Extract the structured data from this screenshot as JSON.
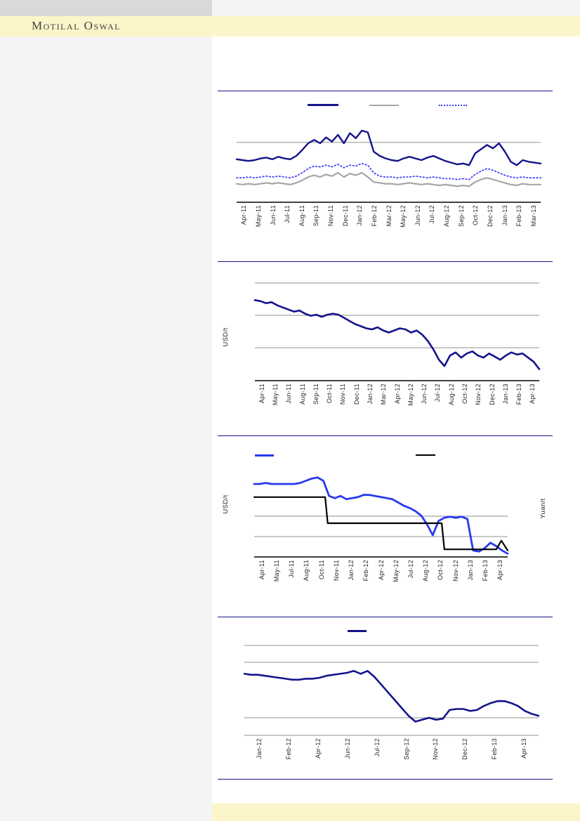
{
  "brand": {
    "name": "Motilal Oswal"
  },
  "page": {
    "background": "#ffffff",
    "left_panel_color": "#f4f4f4",
    "top_left_block_color": "#d9d9d9",
    "top_strip_color": "#f4f4f4",
    "band_color": "#fbf5c9",
    "divider_color": "#14148c",
    "gridline_color": "#909090",
    "axis_color": "#000000"
  },
  "chart_data": [
    {
      "id": "top-three-series-line-chart",
      "type": "line",
      "grid": true,
      "legend_position": "top",
      "baseline_axis": true,
      "gridlines_pct": [
        71
      ],
      "legend": [
        {
          "swatch": "navy-solid",
          "style": "solid",
          "color": "#14148c",
          "label": ""
        },
        {
          "swatch": "gray-solid",
          "style": "solid",
          "color": "#a6a6a6",
          "label": ""
        },
        {
          "swatch": "blue-dotted",
          "style": "dotted",
          "color": "#4040ff",
          "label": ""
        }
      ],
      "x_labels": [
        "Apr-11",
        "May-11",
        "Jun-11",
        "Jul-11",
        "Aug-11",
        "Sep-11",
        "Nov-11",
        "Dec-11",
        "Jan-12",
        "Feb-12",
        "Mar-12",
        "May-12",
        "Jun-12",
        "Jul-12",
        "Aug-12",
        "Sep-12",
        "Oct-12",
        "Dec-12",
        "Jan-13",
        "Feb-13",
        "Mar-13"
      ],
      "series": [
        {
          "name": "navy-solid",
          "color": "#14148c",
          "width": 2.4,
          "dash": "",
          "values": [
            51,
            50,
            49,
            50,
            52,
            53,
            51,
            54,
            52,
            51,
            55,
            62,
            70,
            74,
            70,
            77,
            72,
            80,
            70,
            82,
            76,
            85,
            83,
            60,
            55,
            52,
            50,
            49,
            52,
            54,
            52,
            50,
            53,
            55,
            52,
            49,
            47,
            45,
            46,
            44,
            58,
            63,
            68,
            64,
            70,
            60,
            48,
            44,
            50,
            48,
            47,
            46
          ]
        },
        {
          "name": "gray-solid",
          "color": "#a6a6a6",
          "width": 2.2,
          "dash": "",
          "values": [
            22,
            21,
            22,
            21,
            22,
            23,
            22,
            23,
            22,
            21,
            23,
            26,
            30,
            32,
            30,
            33,
            31,
            35,
            30,
            34,
            32,
            35,
            30,
            24,
            23,
            22,
            22,
            21,
            22,
            23,
            22,
            21,
            22,
            21,
            20,
            21,
            20,
            19,
            20,
            19,
            24,
            27,
            29,
            27,
            25,
            23,
            21,
            20,
            22,
            21,
            21,
            21
          ]
        },
        {
          "name": "blue-dotted",
          "color": "#4040ff",
          "width": 1.8,
          "dash": "1.5 3.2",
          "values": [
            29,
            29,
            30,
            29,
            30,
            31,
            30,
            31,
            30,
            29,
            31,
            35,
            40,
            43,
            42,
            44,
            42,
            45,
            41,
            44,
            43,
            46,
            44,
            35,
            31,
            30,
            30,
            29,
            30,
            30,
            31,
            30,
            29,
            30,
            29,
            28,
            28,
            27,
            28,
            27,
            33,
            37,
            40,
            38,
            35,
            32,
            30,
            29,
            30,
            29,
            29,
            29
          ]
        }
      ]
    },
    {
      "id": "usd-price-line-chart",
      "type": "line",
      "grid": true,
      "unit_left": "USD/t",
      "baseline_axis": true,
      "gridlines_pct": [
        93.3,
        62.4,
        31.5
      ],
      "x_labels": [
        "Apr-11",
        "May-11",
        "Jun-11",
        "Aug-11",
        "Sep-11",
        "Oct-11",
        "Nov-11",
        "Dec-11",
        "Jan-12",
        "Mar-12",
        "Apr-12",
        "May-12",
        "Jun-12",
        "Jul-12",
        "Aug-12",
        "Oct-12",
        "Nov-12",
        "Dec-12",
        "Jan-13",
        "Feb-13",
        "Apr-13"
      ],
      "series": [
        {
          "name": "navy-solid",
          "color": "#14148c",
          "width": 2.6,
          "dash": "",
          "values": [
            77,
            76,
            74,
            75,
            72,
            70,
            68,
            66,
            67,
            64,
            62,
            63,
            61,
            63,
            64,
            63,
            60,
            57,
            54,
            52,
            50,
            49,
            51,
            48,
            46,
            48,
            50,
            49,
            46,
            48,
            44,
            38,
            30,
            20,
            14,
            24,
            27,
            22,
            26,
            28,
            24,
            22,
            26,
            23,
            20,
            24,
            27,
            25,
            26,
            22,
            18,
            11
          ]
        }
      ]
    },
    {
      "id": "usd-vs-yuan-line-chart",
      "type": "line",
      "grid": true,
      "unit_left": "USD/t",
      "unit_right": "Yuan/t",
      "baseline_axis": true,
      "gridlines_pct": [
        37.4,
        18.7
      ],
      "legend": [
        {
          "swatch": "blue-solid",
          "style": "solid",
          "color": "#2839f0",
          "label": ""
        },
        {
          "swatch": "black-solid",
          "style": "solid",
          "color": "#000000",
          "label": ""
        }
      ],
      "x_labels": [
        "Apr-11",
        "May-11",
        "Jul-11",
        "Aug-11",
        "Oct-11",
        "Nov-11",
        "Jan-12",
        "Feb-12",
        "Apr-12",
        "May-12",
        "Jul-12",
        "Aug-12",
        "Oct-12",
        "Nov-12",
        "Jan-13",
        "Feb-13",
        "Apr-13"
      ],
      "series": [
        {
          "name": "blue-solid",
          "color": "#2839f0",
          "width": 2.8,
          "dash": "",
          "values": [
            67,
            67,
            68,
            67,
            67,
            67,
            67,
            67,
            68,
            70,
            72,
            73,
            70,
            56,
            54,
            56,
            53,
            54,
            55,
            57,
            57,
            56,
            55,
            54,
            53,
            50,
            47,
            45,
            42,
            38,
            30,
            20,
            33,
            36,
            37,
            36,
            37,
            35,
            6,
            5,
            8,
            13,
            10,
            6,
            3
          ]
        },
        {
          "name": "black-step",
          "color": "#000000",
          "width": 2.2,
          "dash": "",
          "points": [
            [
              0,
              55
            ],
            [
              0.28,
              55
            ],
            [
              0.29,
              31
            ],
            [
              0.74,
              31
            ],
            [
              0.75,
              7
            ],
            [
              0.955,
              7
            ],
            [
              0.975,
              15
            ],
            [
              1,
              6
            ]
          ]
        }
      ]
    },
    {
      "id": "bottom-line-chart",
      "type": "line",
      "grid": true,
      "baseline_axis": false,
      "gridlines_pct": [
        92.1,
        74.8,
        18.0,
        0
      ],
      "legend": [
        {
          "swatch": "navy-solid",
          "style": "solid",
          "color": "#14148c",
          "label": ""
        }
      ],
      "x_labels": [
        "Jan-12",
        "Feb-12",
        "Apr-12",
        "Jun-12",
        "Jul-12",
        "Sep-12",
        "Nov-12",
        "Dec-12",
        "Feb-13",
        "Apr-13"
      ],
      "series": [
        {
          "name": "navy-solid",
          "color": "#14148c",
          "width": 2.6,
          "dash": "",
          "values": [
            63,
            62,
            62,
            61,
            60,
            59,
            58,
            57,
            57,
            58,
            58,
            59,
            61,
            62,
            63,
            64,
            66,
            63,
            66,
            60,
            52,
            44,
            36,
            28,
            20,
            14,
            16,
            18,
            16,
            17,
            26,
            27,
            27,
            25,
            26,
            30,
            33,
            35,
            35,
            33,
            30,
            25,
            22,
            20
          ]
        }
      ]
    }
  ]
}
